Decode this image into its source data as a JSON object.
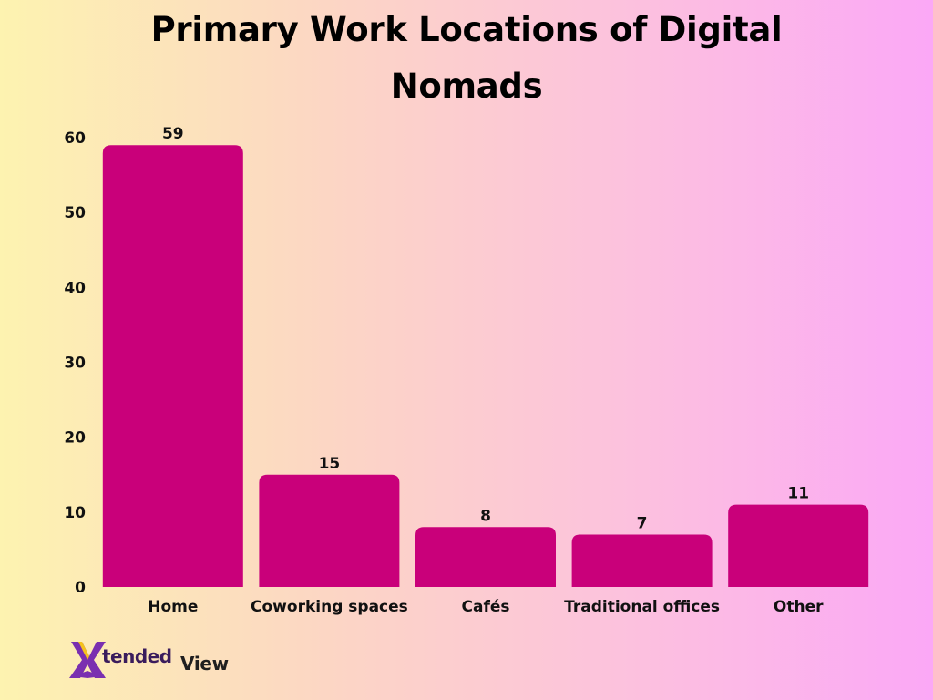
{
  "chart_data": {
    "type": "bar",
    "title": "Primary Work Locations of Digital Nomads",
    "categories": [
      "Home",
      "Coworking spaces",
      "Cafés",
      "Traditional offices",
      "Other"
    ],
    "values": [
      59,
      15,
      8,
      7,
      11
    ],
    "xlabel": "",
    "ylabel": "",
    "ylim": [
      0,
      60
    ],
    "yticks": [
      0,
      10,
      20,
      30,
      40,
      50,
      60
    ],
    "grid": false,
    "bar_color": "#c9007a"
  },
  "brand": {
    "logo_text": "XtendedView"
  }
}
